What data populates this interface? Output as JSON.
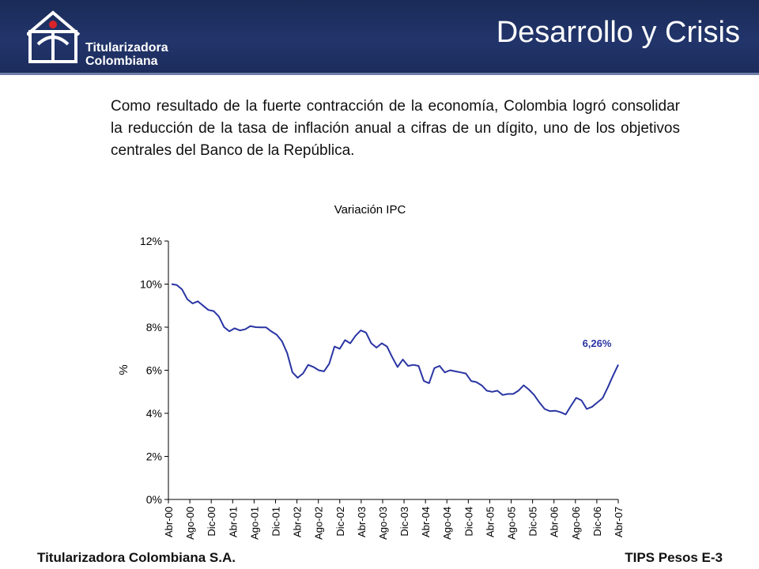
{
  "header": {
    "logo_line1": "Titularizadora",
    "logo_line2": "Colombiana",
    "title": "Desarrollo y Crisis",
    "brand_color": "#1f3163"
  },
  "intro_text": "Como resultado de la fuerte contracción de la economía, Colombia logró consolidar la reducción de la tasa de inflación anual a cifras de un dígito, uno de los objetivos centrales del Banco de la República.",
  "footer": {
    "left": "Titularizadora Colombiana S.A.",
    "right": "TIPS Pesos E-3"
  },
  "chart_data": {
    "type": "line",
    "title": "Variación IPC",
    "xlabel": "",
    "ylabel": "%",
    "ylim": [
      0,
      12
    ],
    "yticks": [
      "0%",
      "2%",
      "4%",
      "6%",
      "8%",
      "10%",
      "12%"
    ],
    "x_tick_labels": [
      "Abr-00",
      "Ago-00",
      "Dic-00",
      "Abr-01",
      "Ago-01",
      "Dic-01",
      "Abr-02",
      "Ago-02",
      "Dic-02",
      "Abr-03",
      "Ago-03",
      "Dic-03",
      "Abr-04",
      "Ago-04",
      "Dic-04",
      "Abr-05",
      "Ago-05",
      "Dic-05",
      "Abr-06",
      "Ago-06",
      "Dic-06",
      "Abr-07"
    ],
    "line_color": "#2a35a3",
    "annotation": {
      "text": "6,26%",
      "color": "#2a35a3"
    },
    "series": [
      {
        "values": [
          10.0,
          9.96,
          9.75,
          9.3,
          9.1,
          9.2,
          9.0,
          8.8,
          8.75,
          8.5,
          8.0,
          7.81,
          7.95,
          7.85,
          7.9,
          8.05,
          8.0,
          7.99,
          7.99,
          7.8,
          7.65,
          7.35,
          6.8,
          5.9,
          5.65,
          5.85,
          6.25,
          6.15,
          6.0,
          5.95,
          6.3,
          7.1,
          7.0,
          7.4,
          7.25,
          7.6,
          7.85,
          7.75,
          7.25,
          7.05,
          7.25,
          7.1,
          6.6,
          6.15,
          6.5,
          6.2,
          6.25,
          6.2,
          5.5,
          5.4,
          6.1,
          6.2,
          5.9,
          6.0,
          5.95,
          5.9,
          5.85,
          5.5,
          5.45,
          5.3,
          5.05,
          5.0,
          5.05,
          4.85,
          4.9,
          4.9,
          5.05,
          5.3,
          5.1,
          4.85,
          4.5,
          4.2,
          4.1,
          4.12,
          4.05,
          3.95,
          4.35,
          4.72,
          4.6,
          4.2,
          4.3,
          4.5,
          4.7,
          5.2,
          5.75,
          6.26
        ]
      }
    ]
  }
}
